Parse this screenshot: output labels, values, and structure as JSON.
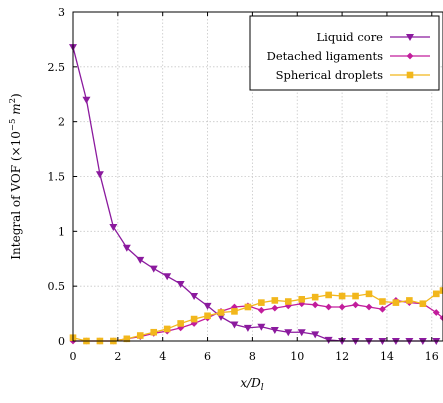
{
  "chart_data": {
    "type": "line",
    "xlabel": "x/D",
    "xlabel_subscript": "l",
    "ylabel": "Integral of VOF (×10",
    "ylabel_exponent": "−5",
    "ylabel_unit": " m",
    "ylabel_unit_exponent": "2",
    "ylabel_close": ")",
    "xlim": [
      0,
      16.5
    ],
    "ylim": [
      0,
      3
    ],
    "xticks": [
      0,
      2,
      4,
      6,
      8,
      10,
      12,
      14,
      16
    ],
    "xtick_labels": [
      "0",
      "2",
      "4",
      "6",
      "8",
      "10",
      "12",
      "14",
      "16"
    ],
    "yticks": [
      0,
      0.5,
      1,
      1.5,
      2,
      2.5,
      3
    ],
    "ytick_labels": [
      "0",
      "0.5",
      "1",
      "1.5",
      "2",
      "2.5",
      "3"
    ],
    "grid": true,
    "legend_position": "top-right",
    "series": [
      {
        "name": "Liquid core",
        "color": "#8b1a9e",
        "marker": "triangle-down",
        "x": [
          0,
          0.6,
          1.2,
          1.8,
          2.4,
          3.0,
          3.6,
          4.2,
          4.8,
          5.4,
          6.0,
          6.6,
          7.2,
          7.8,
          8.4,
          9.0,
          9.6,
          10.2,
          10.8,
          11.4,
          12.0,
          12.6,
          13.2,
          13.8,
          14.4,
          15.0,
          15.6,
          16.2
        ],
        "y": [
          2.68,
          2.2,
          1.52,
          1.04,
          0.85,
          0.74,
          0.66,
          0.59,
          0.52,
          0.41,
          0.32,
          0.22,
          0.15,
          0.12,
          0.13,
          0.1,
          0.08,
          0.08,
          0.06,
          0.01,
          0.0,
          0.0,
          0.0,
          0.0,
          0.0,
          0.0,
          0.0,
          0.0
        ]
      },
      {
        "name": "Detached ligaments",
        "color": "#c21d9c",
        "marker": "diamond",
        "x": [
          0,
          0.6,
          1.2,
          1.8,
          2.4,
          3.0,
          3.6,
          4.2,
          4.8,
          5.4,
          6.0,
          6.6,
          7.2,
          7.8,
          8.4,
          9.0,
          9.6,
          10.2,
          10.8,
          11.4,
          12.0,
          12.6,
          13.2,
          13.8,
          14.4,
          15.0,
          15.6,
          16.2,
          16.5
        ],
        "y": [
          0.0,
          0.0,
          0.0,
          0.0,
          0.02,
          0.04,
          0.07,
          0.09,
          0.12,
          0.16,
          0.21,
          0.27,
          0.31,
          0.32,
          0.28,
          0.3,
          0.32,
          0.34,
          0.33,
          0.31,
          0.31,
          0.33,
          0.31,
          0.29,
          0.37,
          0.35,
          0.34,
          0.26,
          0.21
        ]
      },
      {
        "name": "Spherical droplets",
        "color": "#f2b71c",
        "marker": "square",
        "x": [
          0,
          0.6,
          1.2,
          1.8,
          2.4,
          3.0,
          3.6,
          4.2,
          4.8,
          5.4,
          6.0,
          6.6,
          7.2,
          7.8,
          8.4,
          9.0,
          9.6,
          10.2,
          10.8,
          11.4,
          12.0,
          12.6,
          13.2,
          13.8,
          14.4,
          15.0,
          15.6,
          16.2,
          16.5
        ],
        "y": [
          0.03,
          0.0,
          0.0,
          0.0,
          0.02,
          0.05,
          0.08,
          0.11,
          0.16,
          0.2,
          0.23,
          0.26,
          0.27,
          0.31,
          0.35,
          0.37,
          0.36,
          0.38,
          0.4,
          0.42,
          0.41,
          0.41,
          0.43,
          0.36,
          0.35,
          0.37,
          0.34,
          0.43,
          0.46
        ]
      }
    ]
  }
}
